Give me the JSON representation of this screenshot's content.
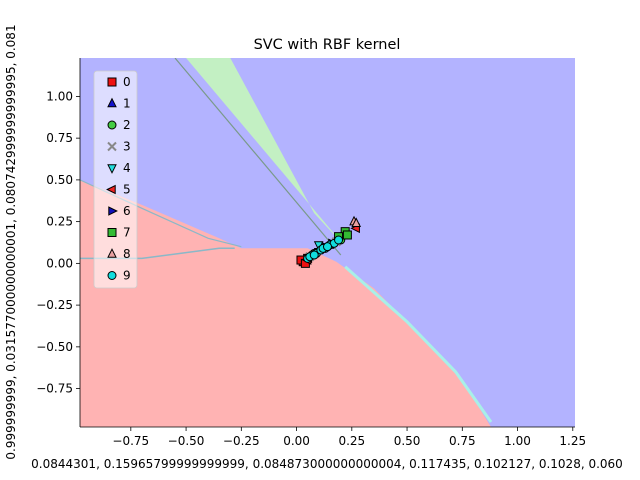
{
  "chart_data": {
    "type": "scatter",
    "title": "SVC with RBF kernel",
    "xlabel": "0.0844301, 0.15965799999999999, 0.084873000000000004, 0.117435, 0.102127, 0.1028, 0.060",
    "ylabel": "0.999999999, 0.031577000000000001, 0.080742999999999995, 0.081",
    "xlim": [
      -0.98,
      1.26
    ],
    "ylim": [
      -0.98,
      1.23
    ],
    "xticks": [
      "−0.75",
      "−0.50",
      "−0.25",
      "0.00",
      "0.25",
      "0.50",
      "0.75",
      "1.00",
      "1.25"
    ],
    "xtick_values": [
      -0.75,
      -0.5,
      -0.25,
      0.0,
      0.25,
      0.5,
      0.75,
      1.0,
      1.25
    ],
    "yticks": [
      "1.00",
      "0.75",
      "0.50",
      "0.25",
      "0.00",
      "−0.25",
      "−0.50",
      "−0.75"
    ],
    "ytick_values": [
      1.0,
      0.75,
      0.5,
      0.25,
      0.0,
      -0.25,
      -0.5,
      -0.75
    ],
    "grid": false,
    "legend_position": "top-left",
    "background_regions": [
      {
        "class": "red",
        "color": "#ffb3b3"
      },
      {
        "class": "blue",
        "color": "#b3b3ff"
      },
      {
        "class": "green",
        "color": "#c3f0c3"
      },
      {
        "class": "cyan",
        "color": "#a8f0e8"
      }
    ],
    "series": [
      {
        "name": "0",
        "marker": "square",
        "color": "#ee1111",
        "points": [
          [
            0.03,
            0.01
          ],
          [
            0.05,
            0.03
          ],
          [
            0.02,
            0.02
          ],
          [
            0.04,
            0.0
          ]
        ]
      },
      {
        "name": "1",
        "marker": "triangle-up",
        "color": "#1111cc",
        "points": [
          [
            0.1,
            0.08
          ],
          [
            0.15,
            0.11
          ],
          [
            0.12,
            0.09
          ]
        ]
      },
      {
        "name": "2",
        "marker": "circle",
        "color": "#44cc44",
        "points": [
          [
            0.08,
            0.06
          ],
          [
            0.14,
            0.1
          ],
          [
            0.2,
            0.14
          ]
        ]
      },
      {
        "name": "3",
        "marker": "x",
        "color": "#888888",
        "points": [
          [
            0.06,
            0.04
          ],
          [
            0.18,
            0.13
          ]
        ]
      },
      {
        "name": "4",
        "marker": "triangle-down",
        "color": "#22dddd",
        "points": [
          [
            0.1,
            0.11
          ],
          [
            0.1,
            0.07
          ]
        ]
      },
      {
        "name": "5",
        "marker": "triangle-left",
        "color": "#ee2222",
        "points": [
          [
            0.27,
            0.21
          ],
          [
            0.05,
            0.02
          ]
        ]
      },
      {
        "name": "6",
        "marker": "triangle-right",
        "color": "#1111bb",
        "points": [
          [
            0.13,
            0.1
          ],
          [
            0.16,
            0.12
          ]
        ]
      },
      {
        "name": "7",
        "marker": "square",
        "color": "#33bb33",
        "points": [
          [
            0.22,
            0.19
          ],
          [
            0.23,
            0.17
          ],
          [
            0.19,
            0.16
          ]
        ]
      },
      {
        "name": "8",
        "marker": "triangle-up",
        "color": "#e8a0a0",
        "points": [
          [
            0.26,
            0.25
          ],
          [
            0.27,
            0.24
          ]
        ]
      },
      {
        "name": "9",
        "marker": "circle",
        "color": "#11dddd",
        "points": [
          [
            0.05,
            0.03
          ],
          [
            0.07,
            0.05
          ],
          [
            0.09,
            0.06
          ],
          [
            0.11,
            0.08
          ],
          [
            0.13,
            0.09
          ],
          [
            0.15,
            0.11
          ],
          [
            0.17,
            0.12
          ],
          [
            0.19,
            0.14
          ],
          [
            0.06,
            0.04
          ],
          [
            0.08,
            0.05
          ],
          [
            0.12,
            0.09
          ],
          [
            0.14,
            0.1
          ]
        ]
      }
    ]
  }
}
